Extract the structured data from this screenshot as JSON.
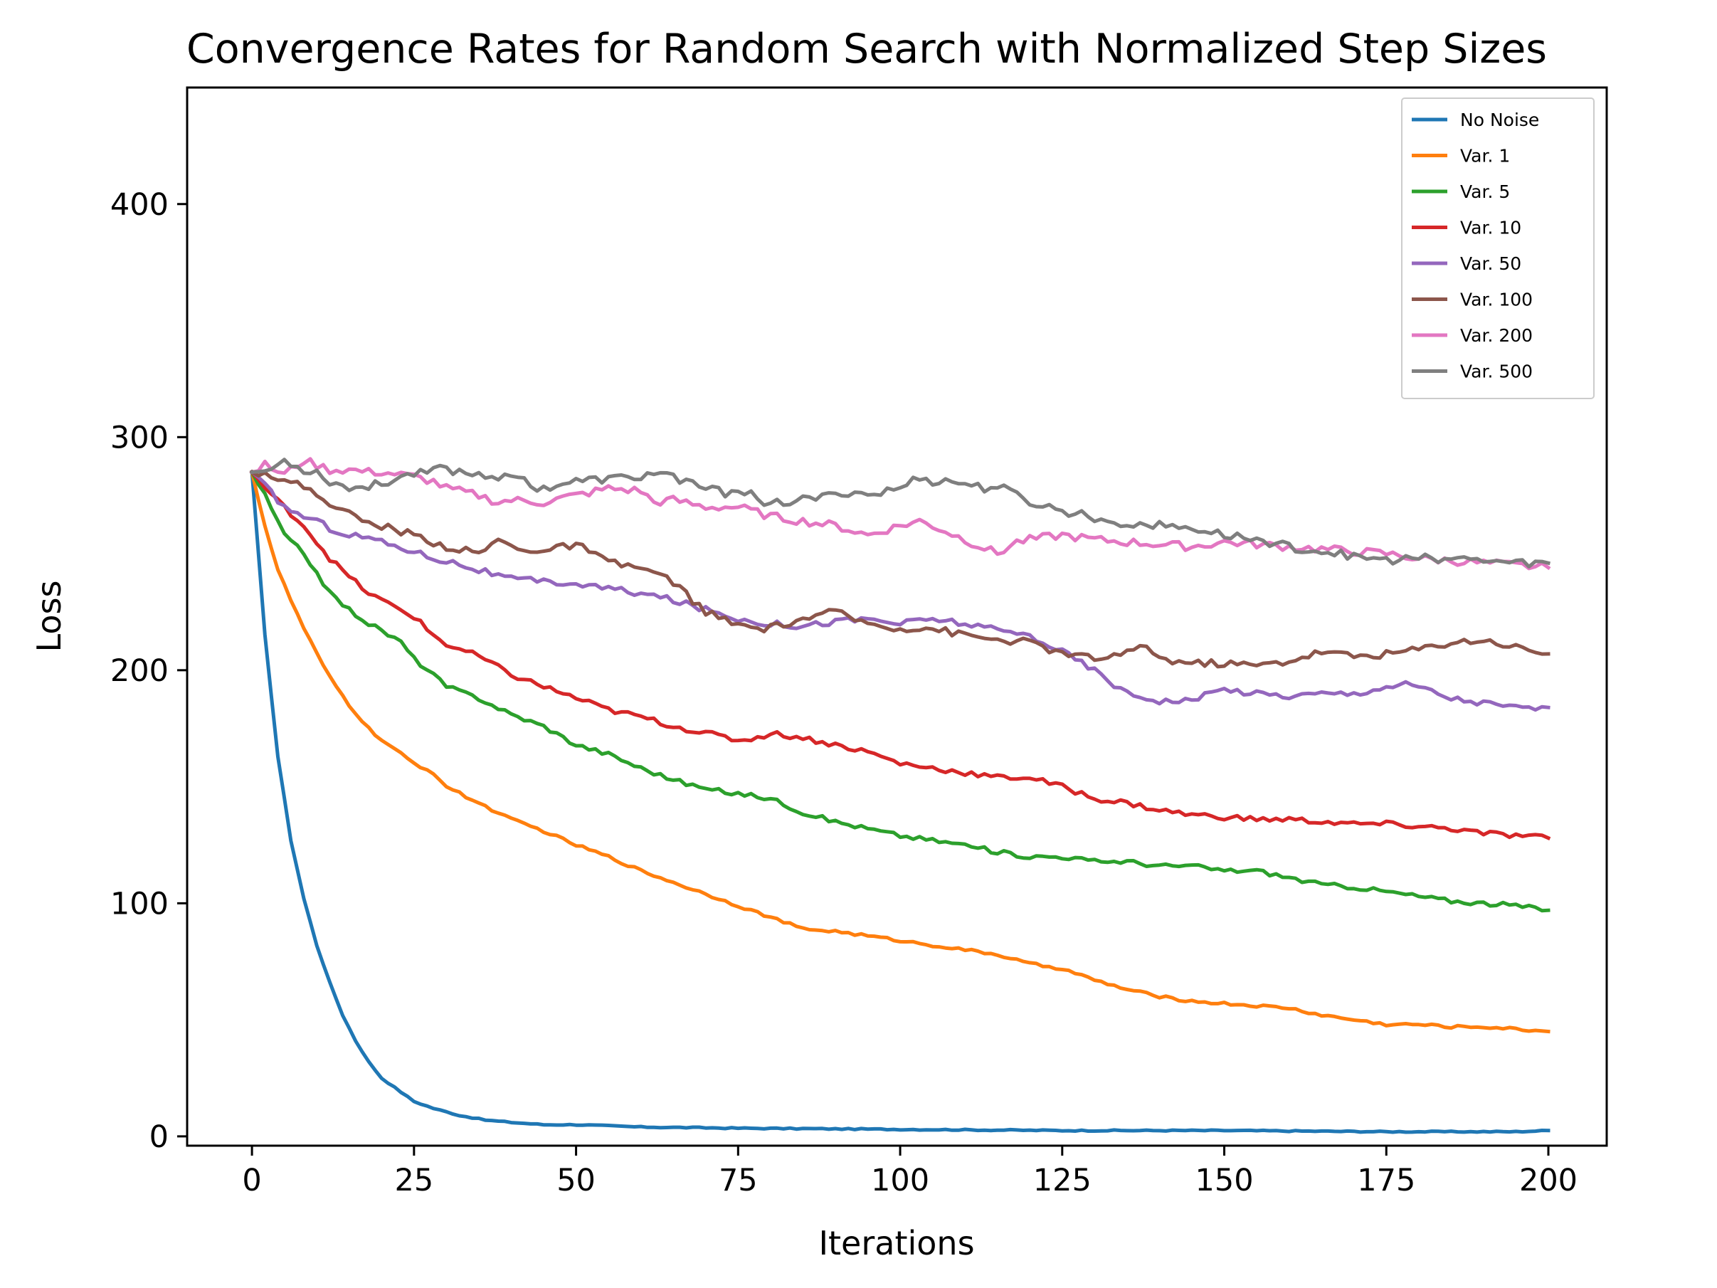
{
  "chart_data": {
    "type": "line",
    "title": "Convergence Rates for Random Search with Normalized Step Sizes",
    "xlabel": "Iterations",
    "ylabel": "Loss",
    "xlim": [
      -10,
      209
    ],
    "ylim": [
      -4,
      450
    ],
    "xticks": [
      0,
      25,
      50,
      75,
      100,
      125,
      150,
      175,
      200
    ],
    "yticks": [
      0,
      100,
      200,
      300,
      400
    ],
    "legend_position": "upper right",
    "grid": false,
    "series": [
      {
        "name": "No Noise",
        "color": "#1f77b4",
        "x": [
          0,
          2,
          4,
          6,
          8,
          10,
          12,
          14,
          16,
          18,
          20,
          22,
          25,
          28,
          32,
          36,
          40,
          45,
          50,
          60,
          75,
          100,
          125,
          150,
          175,
          180,
          185,
          190,
          195,
          200
        ],
        "y": [
          285,
          215,
          163,
          127,
          102,
          82,
          66,
          52,
          41,
          32,
          25,
          21,
          15,
          12,
          9,
          7,
          6,
          5,
          5,
          4,
          3.5,
          3,
          2.5,
          2.5,
          2,
          2,
          2,
          2,
          2,
          2.5
        ]
      },
      {
        "name": "Var. 1",
        "color": "#ff7f0e",
        "x": [
          0,
          2,
          4,
          6,
          8,
          10,
          12,
          15,
          18,
          20,
          25,
          28,
          30,
          35,
          40,
          45,
          50,
          55,
          60,
          65,
          70,
          75,
          80,
          85,
          90,
          95,
          100,
          105,
          110,
          115,
          120,
          125,
          130,
          135,
          140,
          145,
          150,
          155,
          160,
          165,
          170,
          175,
          180,
          185,
          190,
          195,
          200
        ],
        "y": [
          285,
          262,
          243,
          230,
          218,
          207,
          197,
          185,
          175,
          170,
          160,
          156,
          150,
          143,
          136,
          131,
          125,
          120,
          114,
          109,
          104,
          99,
          94,
          89,
          88,
          86,
          84,
          82,
          80,
          78,
          74,
          72,
          67,
          63,
          60,
          58,
          57,
          56,
          55,
          52,
          50,
          48,
          48,
          47,
          47,
          46,
          45
        ]
      },
      {
        "name": "Var. 5",
        "color": "#2ca02c",
        "x": [
          0,
          2,
          5,
          8,
          10,
          12,
          15,
          18,
          20,
          23,
          25,
          28,
          30,
          35,
          40,
          45,
          50,
          55,
          60,
          65,
          70,
          75,
          80,
          85,
          90,
          95,
          100,
          105,
          110,
          115,
          120,
          125,
          130,
          135,
          140,
          145,
          150,
          155,
          160,
          165,
          170,
          175,
          180,
          185,
          190,
          195,
          200
        ],
        "y": [
          285,
          275,
          258,
          250,
          242,
          233,
          226,
          220,
          217,
          212,
          205,
          198,
          193,
          188,
          181,
          176,
          168,
          164,
          158,
          153,
          149,
          147,
          145,
          139,
          135,
          132,
          129,
          127,
          125,
          122,
          120,
          120,
          118,
          118,
          116,
          116,
          114,
          114,
          111,
          108,
          107,
          105,
          103,
          101,
          100,
          99,
          97
        ]
      },
      {
        "name": "Var. 10",
        "color": "#d62728",
        "x": [
          0,
          3,
          5,
          8,
          10,
          12,
          15,
          18,
          20,
          25,
          28,
          30,
          35,
          40,
          45,
          50,
          55,
          60,
          65,
          70,
          75,
          78,
          80,
          85,
          90,
          95,
          100,
          105,
          110,
          115,
          120,
          125,
          130,
          135,
          140,
          145,
          150,
          155,
          160,
          165,
          170,
          175,
          180,
          185,
          190,
          195,
          200
        ],
        "y": [
          285,
          275,
          270,
          262,
          255,
          248,
          240,
          233,
          230,
          223,
          215,
          211,
          206,
          198,
          193,
          188,
          183,
          180,
          176,
          173,
          170,
          171,
          173,
          171,
          168,
          165,
          160,
          158,
          156,
          154,
          154,
          150,
          145,
          143,
          140,
          138,
          137,
          136,
          136,
          135,
          134,
          134,
          133,
          132,
          130,
          129,
          128
        ]
      },
      {
        "name": "Var. 50",
        "color": "#9467bd",
        "x": [
          0,
          3,
          5,
          8,
          10,
          12,
          15,
          18,
          20,
          25,
          28,
          30,
          35,
          40,
          45,
          50,
          55,
          60,
          65,
          70,
          75,
          80,
          85,
          90,
          95,
          100,
          105,
          110,
          115,
          120,
          125,
          130,
          135,
          140,
          145,
          150,
          155,
          160,
          165,
          170,
          175,
          178,
          180,
          185,
          190,
          195,
          200
        ],
        "y": [
          285,
          276,
          270,
          266,
          264,
          261,
          258,
          257,
          255,
          251,
          248,
          247,
          243,
          239,
          238,
          237,
          235,
          233,
          230,
          226,
          222,
          220,
          219,
          221,
          222,
          220,
          222,
          220,
          217,
          215,
          208,
          200,
          190,
          187,
          187,
          192,
          190,
          189,
          190,
          190,
          193,
          194,
          193,
          188,
          186,
          184,
          184
        ]
      },
      {
        "name": "Var. 100",
        "color": "#8c564b",
        "x": [
          0,
          2,
          5,
          8,
          10,
          12,
          15,
          18,
          20,
          25,
          28,
          30,
          35,
          38,
          40,
          45,
          50,
          52,
          55,
          60,
          65,
          68,
          70,
          75,
          78,
          80,
          85,
          90,
          92,
          95,
          100,
          105,
          110,
          115,
          120,
          125,
          130,
          135,
          138,
          140,
          145,
          150,
          155,
          160,
          165,
          170,
          175,
          180,
          185,
          190,
          195,
          200
        ],
        "y": [
          285,
          285,
          281,
          279,
          275,
          272,
          267,
          263,
          262,
          258,
          255,
          253,
          250,
          256,
          253,
          251,
          254,
          251,
          246,
          244,
          238,
          230,
          225,
          219,
          218,
          218,
          222,
          225,
          223,
          220,
          218,
          218,
          215,
          213,
          212,
          207,
          205,
          207,
          211,
          205,
          203,
          203,
          202,
          204,
          208,
          206,
          207,
          209,
          212,
          213,
          210,
          207
        ]
      },
      {
        "name": "Var. 200",
        "color": "#e377c2",
        "x": [
          0,
          2,
          5,
          8,
          10,
          12,
          15,
          18,
          20,
          25,
          28,
          30,
          35,
          38,
          40,
          45,
          48,
          50,
          55,
          60,
          62,
          65,
          70,
          75,
          80,
          85,
          90,
          95,
          100,
          103,
          105,
          110,
          115,
          118,
          120,
          125,
          130,
          135,
          140,
          145,
          150,
          155,
          160,
          165,
          170,
          175,
          180,
          185,
          190,
          195,
          200
        ],
        "y": [
          285,
          288,
          284,
          290,
          288,
          286,
          286,
          285,
          285,
          283,
          281,
          278,
          275,
          272,
          273,
          272,
          274,
          275,
          278,
          277,
          272,
          273,
          270,
          270,
          266,
          264,
          262,
          258,
          262,
          264,
          262,
          256,
          250,
          255,
          256,
          258,
          256,
          255,
          254,
          253,
          255,
          254,
          253,
          252,
          251,
          250,
          248,
          247,
          246,
          245,
          244
        ]
      },
      {
        "name": "Var. 500",
        "color": "#7f7f7f",
        "x": [
          0,
          3,
          5,
          8,
          10,
          12,
          15,
          18,
          20,
          25,
          28,
          30,
          35,
          38,
          40,
          43,
          45,
          48,
          50,
          55,
          60,
          63,
          65,
          68,
          70,
          73,
          75,
          78,
          80,
          82,
          85,
          90,
          93,
          95,
          100,
          103,
          105,
          108,
          110,
          113,
          115,
          118,
          120,
          123,
          125,
          128,
          130,
          133,
          135,
          140,
          145,
          150,
          155,
          160,
          165,
          170,
          175,
          180,
          185,
          190,
          195,
          200
        ],
        "y": [
          285,
          286,
          290,
          286,
          285,
          281,
          278,
          279,
          280,
          285,
          287,
          286,
          284,
          283,
          285,
          279,
          278,
          280,
          281,
          282,
          283,
          285,
          283,
          280,
          278,
          276,
          278,
          274,
          271,
          272,
          273,
          275,
          277,
          275,
          278,
          283,
          281,
          281,
          280,
          278,
          279,
          275,
          272,
          270,
          268,
          267,
          265,
          264,
          263,
          262,
          261,
          258,
          256,
          253,
          251,
          249,
          247,
          248,
          248,
          247,
          246,
          246
        ]
      }
    ]
  }
}
